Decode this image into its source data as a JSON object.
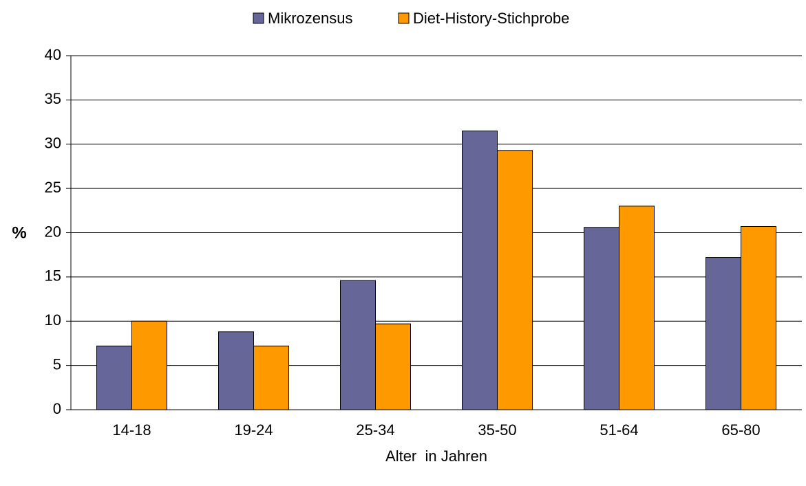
{
  "chart_data": {
    "type": "bar",
    "categories": [
      "14-18",
      "19-24",
      "25-34",
      "35-50",
      "51-64",
      "65-80"
    ],
    "series": [
      {
        "name": "Mikrozensus",
        "color": "#666699",
        "values": [
          7.2,
          8.8,
          14.6,
          31.5,
          20.6,
          17.2
        ]
      },
      {
        "name": "Diet-History-Stichprobe",
        "color": "#ff9900",
        "values": [
          10.0,
          7.2,
          9.7,
          29.3,
          23.0,
          20.7
        ]
      }
    ],
    "ylabel": "%",
    "xlabel": "Alter  in Jahren",
    "ylim": [
      0,
      40
    ],
    "yticks": [
      0,
      5,
      10,
      15,
      20,
      25,
      30,
      35,
      40
    ],
    "grid": true,
    "legend": "top"
  }
}
